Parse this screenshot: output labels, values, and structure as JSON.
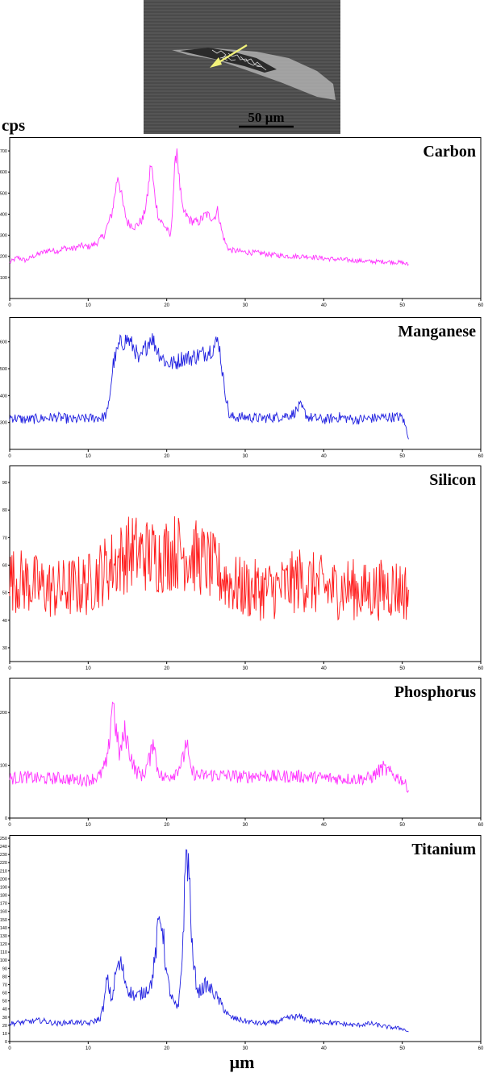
{
  "sem_image": {
    "scale_label": "50 µm",
    "arrow_color": "#f2f27a"
  },
  "y_unit": "cps",
  "x_unit": "µm",
  "chart_data": [
    {
      "type": "line",
      "element": "Carbon",
      "color": "#ff33ff",
      "xlim": [
        0,
        60
      ],
      "ylim": [
        0,
        750
      ],
      "xticks": [
        0,
        10,
        20,
        30,
        40,
        50,
        60
      ],
      "yticks": [
        100,
        200,
        300,
        400,
        500,
        600,
        700
      ],
      "points": [
        [
          0,
          170
        ],
        [
          1,
          195
        ],
        [
          2,
          180
        ],
        [
          3,
          200
        ],
        [
          4,
          215
        ],
        [
          5,
          230
        ],
        [
          6,
          225
        ],
        [
          7,
          240
        ],
        [
          8,
          235
        ],
        [
          9,
          250
        ],
        [
          10,
          245
        ],
        [
          11,
          260
        ],
        [
          12,
          300
        ],
        [
          13,
          400
        ],
        [
          13.8,
          590
        ],
        [
          14.5,
          430
        ],
        [
          15,
          360
        ],
        [
          16,
          340
        ],
        [
          17,
          380
        ],
        [
          17.5,
          470
        ],
        [
          18,
          650
        ],
        [
          18.5,
          480
        ],
        [
          19,
          380
        ],
        [
          20,
          330
        ],
        [
          20.5,
          290
        ],
        [
          21,
          600
        ],
        [
          21.3,
          720
        ],
        [
          21.6,
          560
        ],
        [
          22,
          420
        ],
        [
          23,
          370
        ],
        [
          24,
          360
        ],
        [
          25,
          400
        ],
        [
          26,
          380
        ],
        [
          26.5,
          420
        ],
        [
          27,
          320
        ],
        [
          27.5,
          260
        ],
        [
          28,
          230
        ],
        [
          30,
          220
        ],
        [
          32,
          215
        ],
        [
          34,
          205
        ],
        [
          36,
          200
        ],
        [
          38,
          200
        ],
        [
          40,
          190
        ],
        [
          42,
          185
        ],
        [
          44,
          180
        ],
        [
          46,
          175
        ],
        [
          48,
          175
        ],
        [
          50,
          170
        ],
        [
          50.8,
          160
        ]
      ]
    },
    {
      "type": "line",
      "element": "Manganese",
      "color": "#2020e0",
      "xlim": [
        0,
        60
      ],
      "ylim": [
        200,
        680
      ],
      "xticks": [
        0,
        10,
        20,
        30,
        40,
        50,
        60
      ],
      "yticks": [
        300,
        400,
        500,
        600
      ],
      "points": [
        [
          0,
          320
        ],
        [
          2,
          310
        ],
        [
          4,
          315
        ],
        [
          6,
          320
        ],
        [
          8,
          310
        ],
        [
          10,
          315
        ],
        [
          12,
          320
        ],
        [
          12.5,
          340
        ],
        [
          13.2,
          520
        ],
        [
          14,
          590
        ],
        [
          15,
          610
        ],
        [
          16,
          570
        ],
        [
          16.5,
          520
        ],
        [
          17,
          560
        ],
        [
          18,
          620
        ],
        [
          19,
          560
        ],
        [
          20,
          520
        ],
        [
          21,
          520
        ],
        [
          22,
          540
        ],
        [
          23,
          540
        ],
        [
          24,
          550
        ],
        [
          25,
          560
        ],
        [
          26,
          580
        ],
        [
          26.6,
          610
        ],
        [
          27.2,
          460
        ],
        [
          28,
          320
        ],
        [
          30,
          320
        ],
        [
          32,
          315
        ],
        [
          34,
          320
        ],
        [
          36,
          330
        ],
        [
          37,
          360
        ],
        [
          38,
          320
        ],
        [
          40,
          310
        ],
        [
          42,
          320
        ],
        [
          44,
          310
        ],
        [
          46,
          315
        ],
        [
          48,
          320
        ],
        [
          50,
          320
        ],
        [
          50.8,
          250
        ]
      ]
    },
    {
      "type": "line",
      "element": "Silicon",
      "color": "#ff1a1a",
      "xlim": [
        0,
        60
      ],
      "ylim": [
        25,
        95
      ],
      "xticks": [
        0,
        10,
        20,
        30,
        40,
        50,
        60
      ],
      "yticks": [
        30,
        40,
        50,
        60,
        70,
        80,
        90
      ],
      "points": [
        [
          0,
          55
        ],
        [
          2,
          54
        ],
        [
          4,
          52
        ],
        [
          6,
          51
        ],
        [
          8,
          52
        ],
        [
          10,
          53
        ],
        [
          12,
          58
        ],
        [
          14,
          62
        ],
        [
          15.5,
          65
        ],
        [
          17,
          64
        ],
        [
          19,
          63
        ],
        [
          21,
          65
        ],
        [
          23,
          64
        ],
        [
          25,
          61
        ],
        [
          27,
          56
        ],
        [
          29,
          52
        ],
        [
          31,
          51
        ],
        [
          33,
          51
        ],
        [
          35,
          52
        ],
        [
          37,
          55
        ],
        [
          39,
          53
        ],
        [
          41,
          51
        ],
        [
          43,
          52
        ],
        [
          45,
          50
        ],
        [
          47,
          51
        ],
        [
          49,
          52
        ],
        [
          50.8,
          50
        ]
      ]
    },
    {
      "type": "line",
      "element": "Phosphorus",
      "color": "#ff33ff",
      "xlim": [
        0,
        60
      ],
      "ylim": [
        0,
        260
      ],
      "xticks": [
        0,
        10,
        20,
        30,
        40,
        50,
        60
      ],
      "yticks": [
        0,
        100,
        200
      ],
      "points": [
        [
          0,
          75
        ],
        [
          2,
          78
        ],
        [
          4,
          74
        ],
        [
          6,
          76
        ],
        [
          8,
          73
        ],
        [
          10,
          72
        ],
        [
          11.5,
          80
        ],
        [
          12.5,
          110
        ],
        [
          13.1,
          230
        ],
        [
          13.6,
          160
        ],
        [
          14,
          120
        ],
        [
          14.7,
          165
        ],
        [
          15.2,
          130
        ],
        [
          16,
          90
        ],
        [
          17,
          80
        ],
        [
          18,
          120
        ],
        [
          18.3,
          160
        ],
        [
          18.7,
          100
        ],
        [
          19.5,
          75
        ],
        [
          21,
          85
        ],
        [
          22.1,
          110
        ],
        [
          22.5,
          150
        ],
        [
          23,
          90
        ],
        [
          24,
          80
        ],
        [
          26,
          82
        ],
        [
          28,
          80
        ],
        [
          30,
          78
        ],
        [
          32,
          82
        ],
        [
          34,
          78
        ],
        [
          36,
          80
        ],
        [
          38,
          78
        ],
        [
          40,
          76
        ],
        [
          42,
          75
        ],
        [
          44,
          74
        ],
        [
          46,
          76
        ],
        [
          47.5,
          95
        ],
        [
          48.5,
          85
        ],
        [
          50,
          72
        ],
        [
          50.8,
          55
        ]
      ]
    },
    {
      "type": "line",
      "element": "Titanium",
      "color": "#2020e0",
      "xlim": [
        0,
        60
      ],
      "ylim": [
        0,
        250
      ],
      "xticks": [
        0,
        10,
        20,
        30,
        40,
        50,
        60
      ],
      "yticks": [
        0,
        10,
        20,
        30,
        40,
        50,
        60,
        70,
        80,
        90,
        100,
        110,
        120,
        130,
        140,
        150,
        160,
        170,
        180,
        190,
        200,
        210,
        220,
        230,
        240,
        250
      ],
      "points": [
        [
          0,
          22
        ],
        [
          2,
          24
        ],
        [
          4,
          26
        ],
        [
          6,
          22
        ],
        [
          8,
          24
        ],
        [
          10,
          22
        ],
        [
          11.5,
          28
        ],
        [
          12,
          45
        ],
        [
          12.4,
          78
        ],
        [
          13,
          50
        ],
        [
          13.6,
          90
        ],
        [
          14.2,
          95
        ],
        [
          15,
          65
        ],
        [
          16,
          55
        ],
        [
          17,
          60
        ],
        [
          18,
          70
        ],
        [
          18.5,
          100
        ],
        [
          19,
          148
        ],
        [
          19.4,
          150
        ],
        [
          20,
          80
        ],
        [
          20.6,
          55
        ],
        [
          21,
          45
        ],
        [
          21.5,
          40
        ],
        [
          22,
          110
        ],
        [
          22.5,
          240
        ],
        [
          22.9,
          200
        ],
        [
          23.3,
          100
        ],
        [
          24,
          60
        ],
        [
          25,
          70
        ],
        [
          26,
          60
        ],
        [
          27,
          45
        ],
        [
          28,
          30
        ],
        [
          30,
          25
        ],
        [
          32,
          22
        ],
        [
          34,
          24
        ],
        [
          36,
          30
        ],
        [
          37,
          30
        ],
        [
          38,
          26
        ],
        [
          40,
          24
        ],
        [
          42,
          22
        ],
        [
          44,
          20
        ],
        [
          46,
          22
        ],
        [
          48,
          18
        ],
        [
          50,
          16
        ],
        [
          50.8,
          12
        ]
      ]
    }
  ]
}
